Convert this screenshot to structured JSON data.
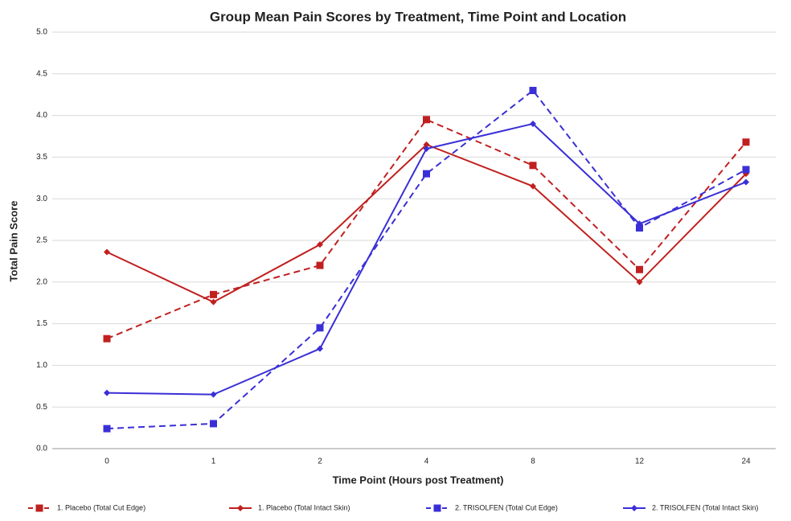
{
  "chart_data": {
    "type": "line",
    "title": "Group Mean Pain Scores by Treatment, Time Point and Location",
    "x_label": "Time Point (Hours post Treatment)",
    "y_label": "Total Pain Score",
    "categories": [
      "0",
      "1",
      "2",
      "4",
      "8",
      "12",
      "24"
    ],
    "ylim": [
      0,
      5
    ],
    "yticks": [
      {
        "value": 0,
        "label": "0.0"
      },
      0.5,
      {
        "value": 1,
        "label": "1.0"
      },
      1.5,
      {
        "value": 2,
        "label": "2.0"
      },
      2.5,
      {
        "value": 3,
        "label": "3.0"
      },
      3.5,
      {
        "value": 4,
        "label": "4.0"
      },
      4.5,
      {
        "value": 5,
        "label": "5.0"
      }
    ],
    "grid": true,
    "legend": "bottom",
    "series": [
      {
        "name": "1. Placebo (Total Cut Edge)",
        "color": "#c0201f",
        "dashed": true,
        "marker": "square",
        "values": [
          1.32,
          1.85,
          2.2,
          3.95,
          3.4,
          2.15,
          3.68
        ]
      },
      {
        "name": "1. Placebo (Total Intact Skin)",
        "color": "#c0201f",
        "dashed": false,
        "marker": "diamond",
        "values": [
          2.36,
          1.76,
          2.45,
          3.65,
          3.15,
          2.0,
          3.3
        ]
      },
      {
        "name": "2. TRISOLFEN (Total Cut Edge)",
        "color": "#3a2fd6",
        "dashed": true,
        "marker": "square",
        "values": [
          0.24,
          0.3,
          1.45,
          3.3,
          4.3,
          2.65,
          3.35
        ]
      },
      {
        "name": "2. TRISOLFEN (Total Intact Skin)",
        "color": "#3a2fd6",
        "dashed": false,
        "marker": "diamond",
        "values": [
          0.67,
          0.65,
          1.2,
          3.6,
          3.9,
          2.7,
          3.2
        ]
      }
    ]
  }
}
